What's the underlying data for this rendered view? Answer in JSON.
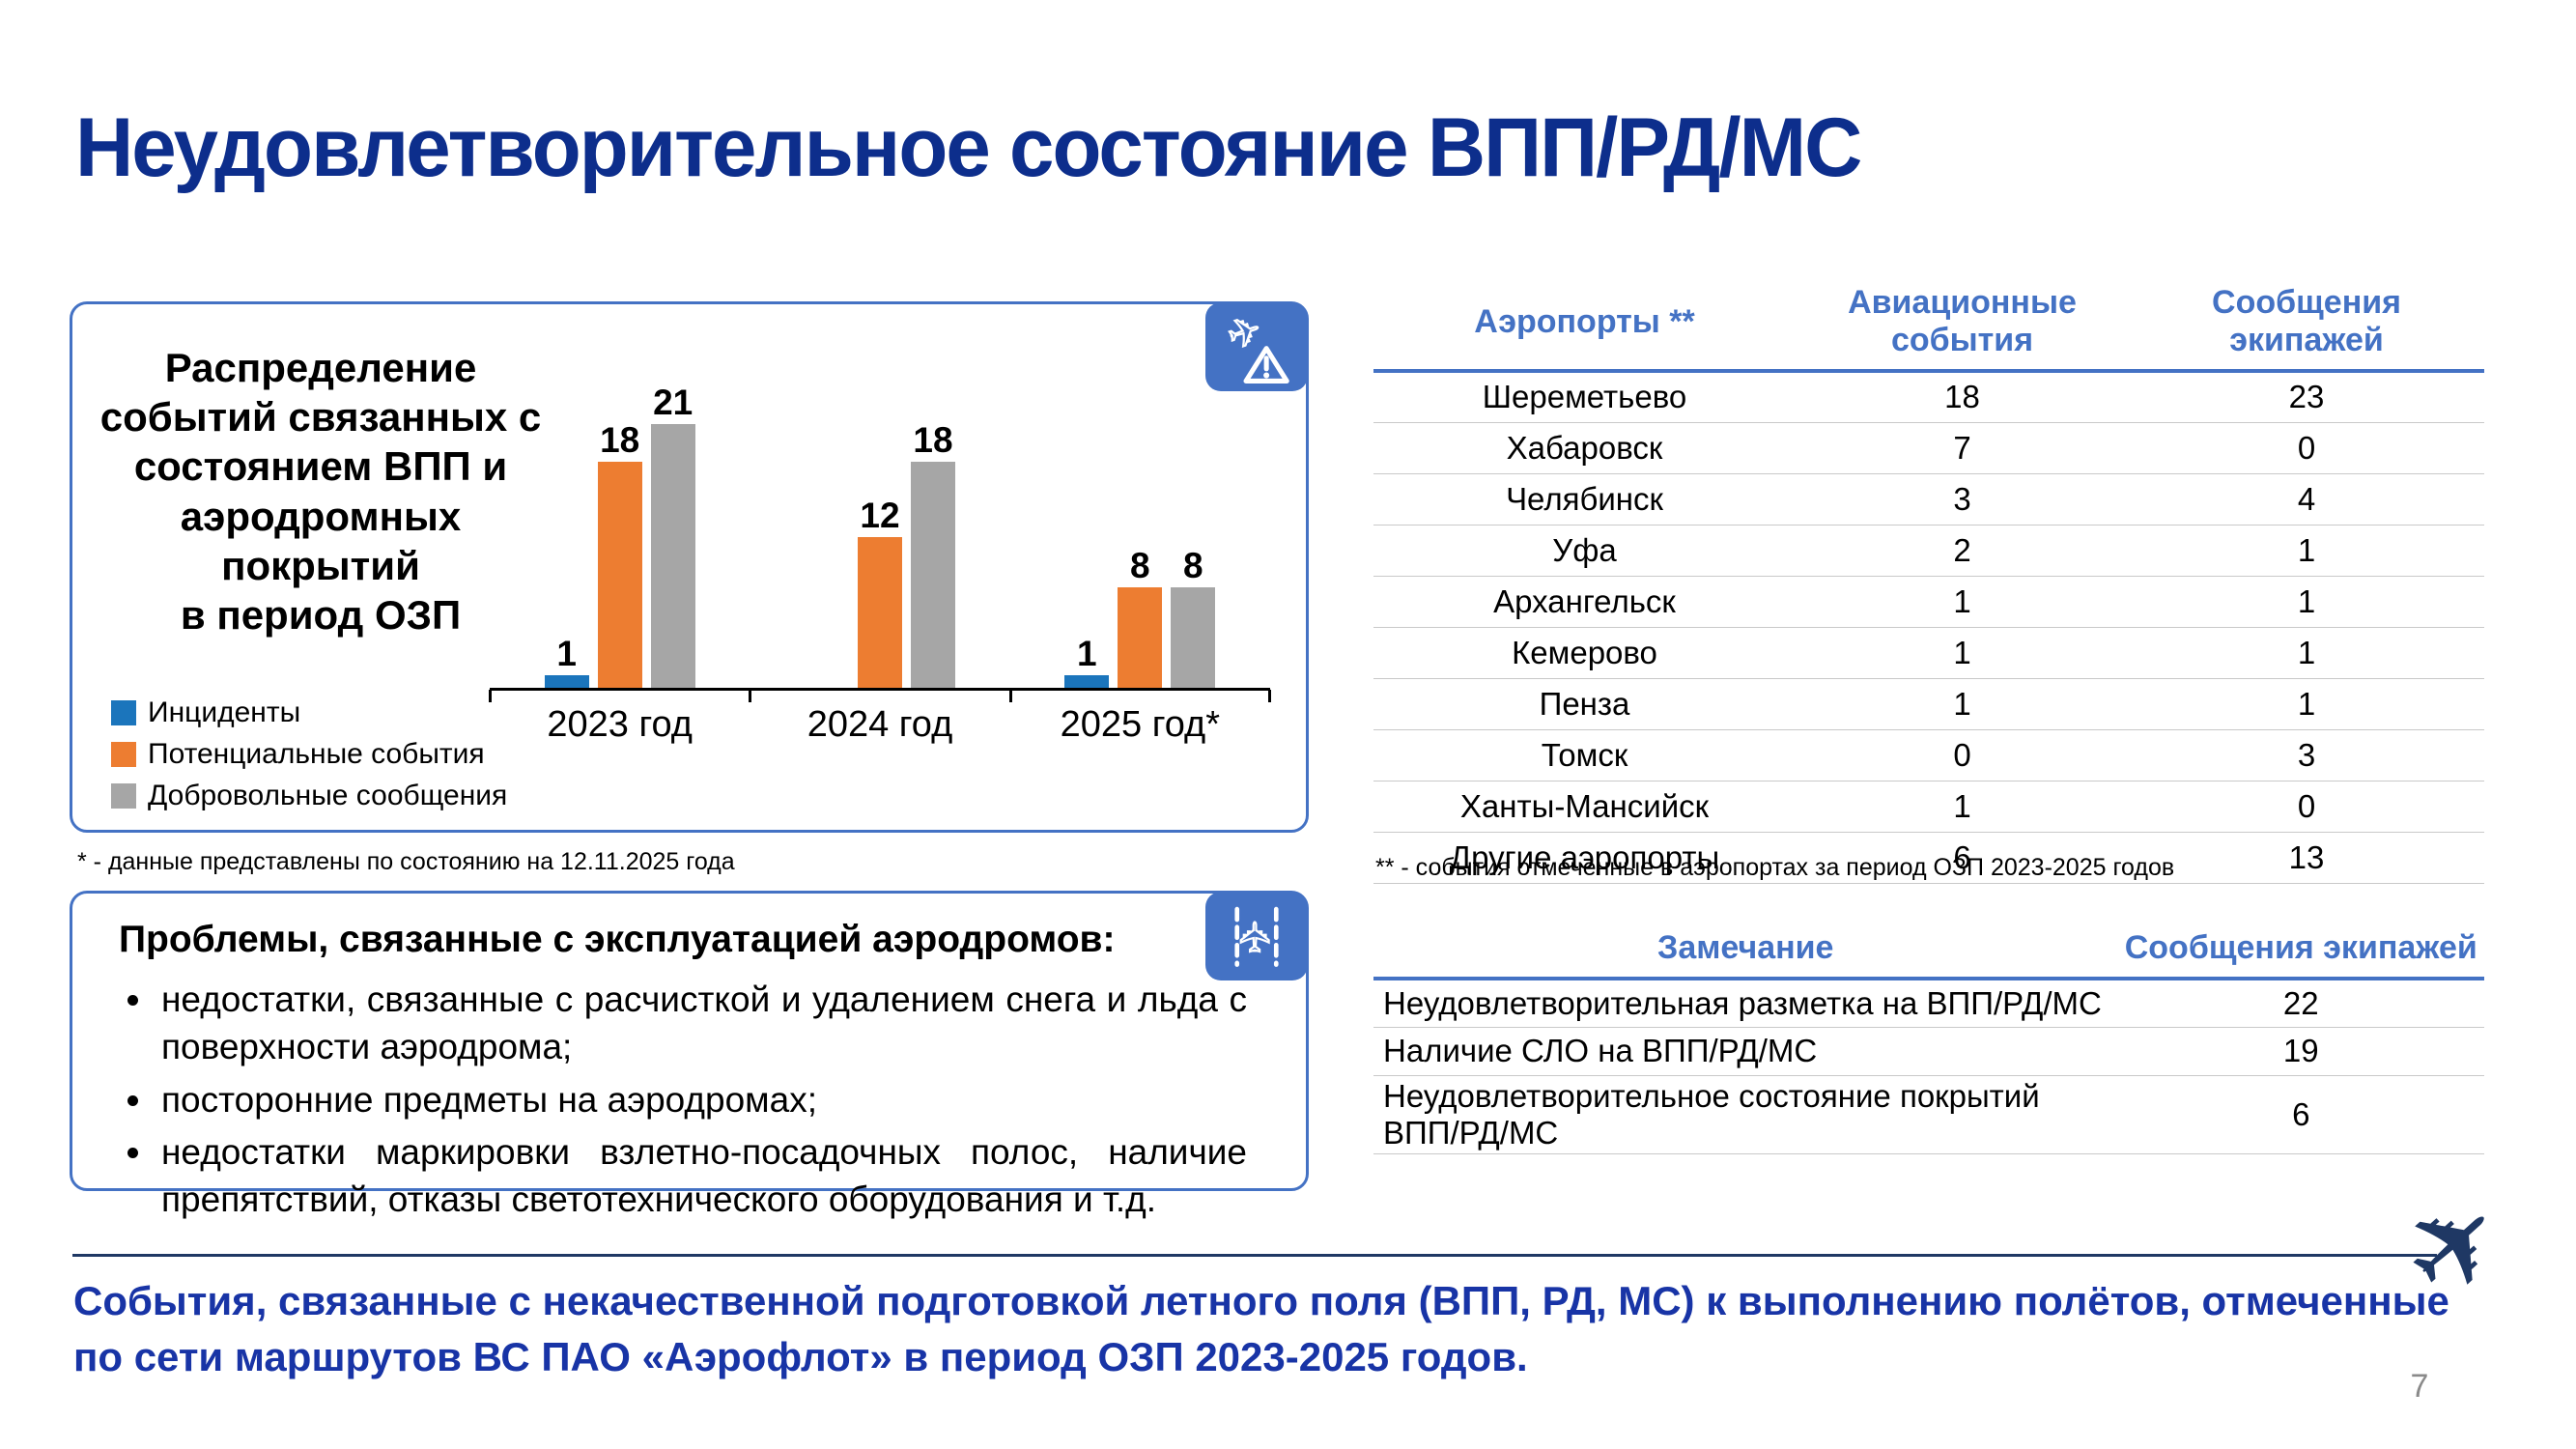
{
  "slide": {
    "title": "Неудовлетворительное состояние ВПП/РД/МС",
    "page_number": "7",
    "footer_text": "События, связанные с некачественной подготовкой летного поля (ВПП, РД, МС) к выполнению полётов, отмеченные по сети маршрутов ВС ПАО «Аэрофлот» в период ОЗП 2023-2025 годов."
  },
  "colors": {
    "title_navy": "#0D2E8C",
    "table_header_blue": "#4472C4",
    "box_border_blue": "#4472C4",
    "footer_navy": "#1834A6",
    "line_navy": "#1F3864",
    "bar_blue": "#1B75BC",
    "bar_orange": "#ED7D31",
    "bar_gray": "#A6A6A6"
  },
  "chart_box": {
    "title_lines": [
      "Распределение",
      "событий связанных с",
      "состоянием ВПП и",
      "аэродромных",
      "покрытий",
      "в период ОЗП"
    ],
    "footnote": "* - данные представлены по состоянию на 12.11.2025 года",
    "icon": "plane-warning-icon"
  },
  "chart_data": {
    "type": "bar",
    "title": "Распределение событий связанных с состоянием ВПП и аэродромных покрытий в период ОЗП",
    "categories": [
      "2023 год",
      "2024 год",
      "2025 год*"
    ],
    "series": [
      {
        "name": "Инциденты",
        "color": "#1B75BC",
        "values": [
          1,
          0,
          1
        ]
      },
      {
        "name": "Потенциальные события",
        "color": "#ED7D31",
        "values": [
          18,
          12,
          8
        ]
      },
      {
        "name": "Добровольные сообщения",
        "color": "#A6A6A6",
        "values": [
          21,
          18,
          8
        ]
      }
    ],
    "value_labels": true,
    "zero_values_hidden": true,
    "ylim": [
      0,
      21
    ],
    "grid": false,
    "legend_position": "bottom-left"
  },
  "problems_box": {
    "heading": "Проблемы, связанные с эксплуатацией аэродромов:",
    "bullets": [
      "недостатки, связанные с расчисткой и удалением снега и льда с поверхности аэродрома;",
      "посторонние предметы на аэродромах;",
      "недостатки маркировки взлетно-посадочных полос, наличие препятствий, отказы светотехнического оборудования и т.д."
    ],
    "icon": "plane-runway-icon"
  },
  "airports_table": {
    "headers": [
      "Аэропорты **",
      "Авиационные события",
      "Сообщения экипажей"
    ],
    "rows": [
      [
        "Шереметьево",
        "18",
        "23"
      ],
      [
        "Хабаровск",
        "7",
        "0"
      ],
      [
        "Челябинск",
        "3",
        "4"
      ],
      [
        "Уфа",
        "2",
        "1"
      ],
      [
        "Архангельск",
        "1",
        "1"
      ],
      [
        "Кемерово",
        "1",
        "1"
      ],
      [
        "Пенза",
        "1",
        "1"
      ],
      [
        "Томск",
        "0",
        "3"
      ],
      [
        "Ханты-Мансийск",
        "1",
        "0"
      ],
      [
        "Другие аэропорты",
        "6",
        "13"
      ]
    ],
    "footnote": "** - события отмеченные в аэропортах за период ОЗП 2023-2025 годов"
  },
  "remarks_table": {
    "headers": [
      "Замечание",
      "Сообщения экипажей"
    ],
    "rows": [
      [
        "Неудовлетворительная разметка на ВПП/РД/МС",
        "22"
      ],
      [
        "Наличие СЛО на ВПП/РД/МС",
        "19"
      ],
      [
        "Неудовлетворительное состояние покрытий ВПП/РД/МС",
        "6"
      ]
    ]
  }
}
